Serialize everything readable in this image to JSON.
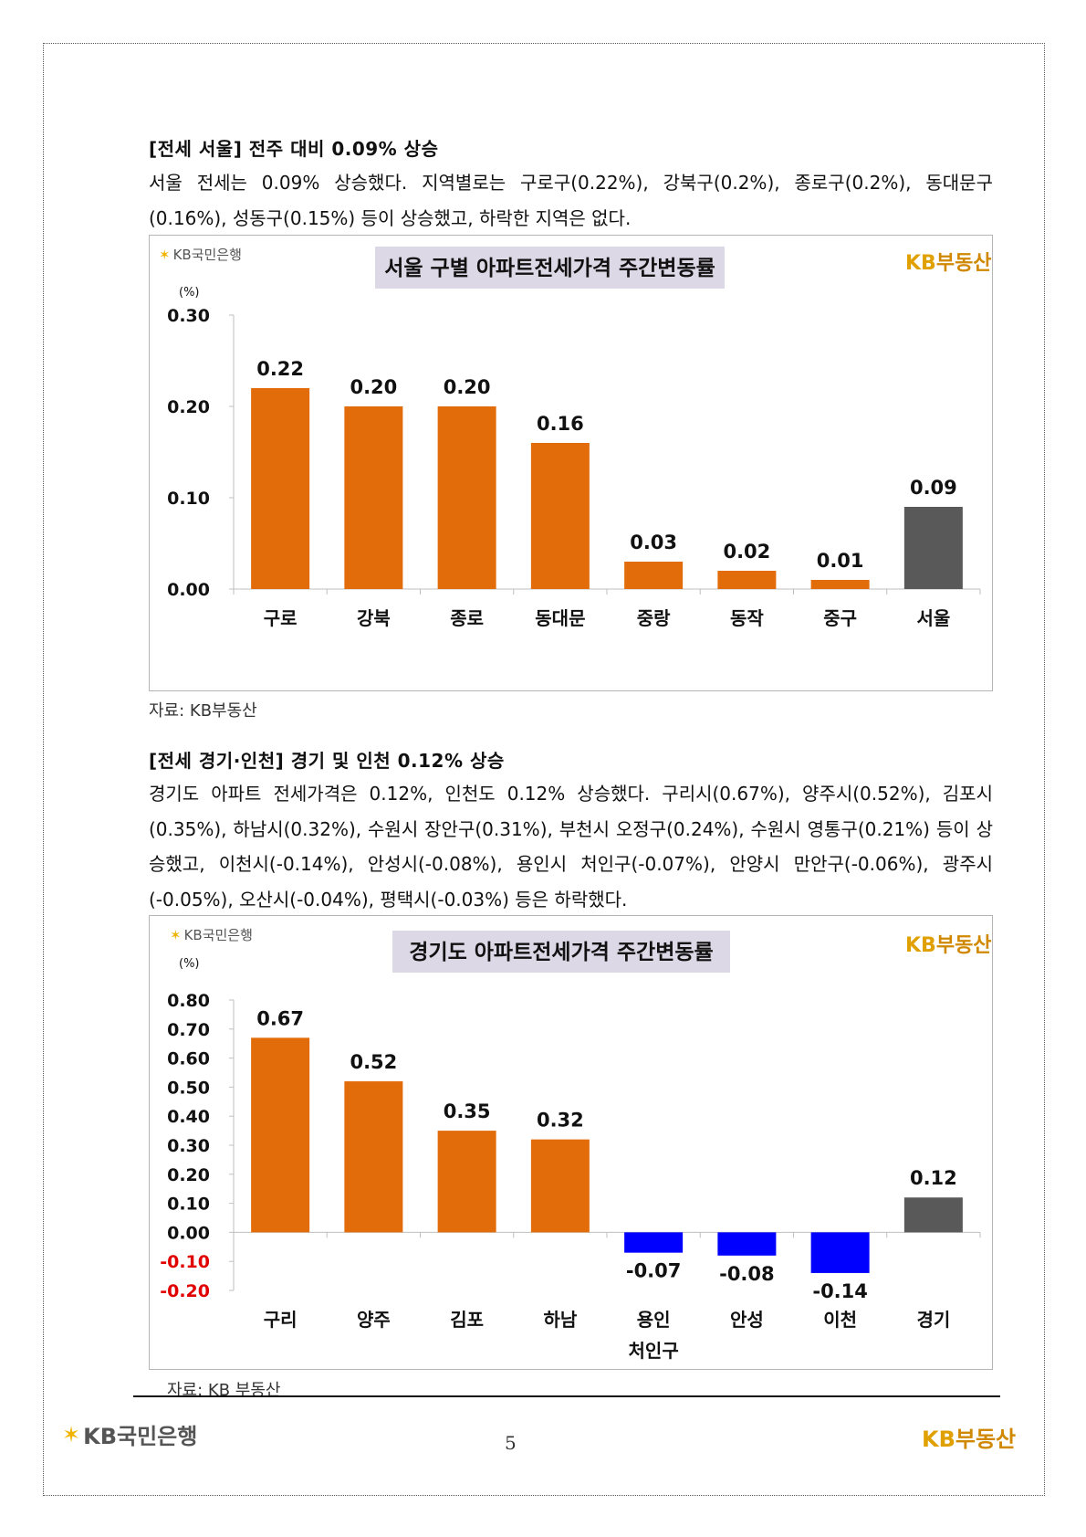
{
  "section1": {
    "heading": "[전세 서울] 전주 대비 0.09% 상승",
    "para": "서울 전세는 0.09% 상승했다. 지역별로는 구로구(0.22%), 강북구(0.2%), 종로구(0.2%), 동대문구(0.16%), 성동구(0.15%) 등이 상승했고, 하락한 지역은 없다.",
    "source": "자료: KB부동산"
  },
  "section2": {
    "heading": "[전세 경기·인천] 경기 및 인천 0.12% 상승",
    "para": "경기도 아파트 전세가격은 0.12%, 인천도 0.12% 상승했다. 구리시(0.67%), 양주시(0.52%), 김포시(0.35%), 하남시(0.32%), 수원시 장안구(0.31%), 부천시 오정구(0.24%), 수원시 영통구(0.21%) 등이 상승했고, 이천시(-0.14%), 안성시(-0.08%), 용인시 처인구(-0.07%), 안양시 만안구(-0.06%), 광주시(-0.05%), 오산시(-0.04%), 평택시(-0.03%) 등은 하락했다.",
    "source": "자료: KB 부동산"
  },
  "logos": {
    "kb_bank": "KB국민은행",
    "kb_realestate_kb": "KB",
    "kb_realestate_name": "부동산"
  },
  "footer": {
    "page_number": "5"
  },
  "colors": {
    "orange": "#e36c0a",
    "gray": "#595959",
    "blue": "#0000ff",
    "negative_tick": "#e00000",
    "title_bg": "#dcd8e6"
  },
  "chart_data": [
    {
      "type": "bar",
      "title": "서울 구별 아파트전세가격 주간변동률",
      "ylabel": "(%)",
      "categories": [
        "구로",
        "강북",
        "종로",
        "동대문",
        "중랑",
        "동작",
        "중구",
        "서울"
      ],
      "values": [
        0.22,
        0.2,
        0.2,
        0.16,
        0.03,
        0.02,
        0.01,
        0.09
      ],
      "value_labels": [
        "0.22",
        "0.20",
        "0.20",
        "0.16",
        "0.03",
        "0.02",
        "0.01",
        "0.09"
      ],
      "bar_colors": [
        "orange",
        "orange",
        "orange",
        "orange",
        "orange",
        "orange",
        "orange",
        "gray"
      ],
      "ylim": [
        0,
        0.3
      ],
      "yticks": [
        "0.00",
        "0.10",
        "0.20",
        "0.30"
      ],
      "ytick_values": [
        0,
        0.1,
        0.2,
        0.3
      ],
      "grid": false,
      "legend": "none"
    },
    {
      "type": "bar",
      "title": "경기도 아파트전세가격 주간변동률",
      "ylabel": "(%)",
      "categories": [
        "구리",
        "양주",
        "김포",
        "하남",
        "용인\n처인구",
        "안성",
        "이천",
        "경기"
      ],
      "values": [
        0.67,
        0.52,
        0.35,
        0.32,
        -0.07,
        -0.08,
        -0.14,
        0.12
      ],
      "value_labels": [
        "0.67",
        "0.52",
        "0.35",
        "0.32",
        "-0.07",
        "-0.08",
        "-0.14",
        "0.12"
      ],
      "bar_colors": [
        "orange",
        "orange",
        "orange",
        "orange",
        "blue",
        "blue",
        "blue",
        "gray"
      ],
      "ylim": [
        -0.2,
        0.8
      ],
      "yticks": [
        "0.80",
        "0.70",
        "0.60",
        "0.50",
        "0.40",
        "0.30",
        "0.20",
        "0.10",
        "0.00",
        "-0.10",
        "-0.20"
      ],
      "ytick_values": [
        0.8,
        0.7,
        0.6,
        0.5,
        0.4,
        0.3,
        0.2,
        0.1,
        0,
        -0.1,
        -0.2
      ],
      "grid": false,
      "legend": "none"
    }
  ]
}
